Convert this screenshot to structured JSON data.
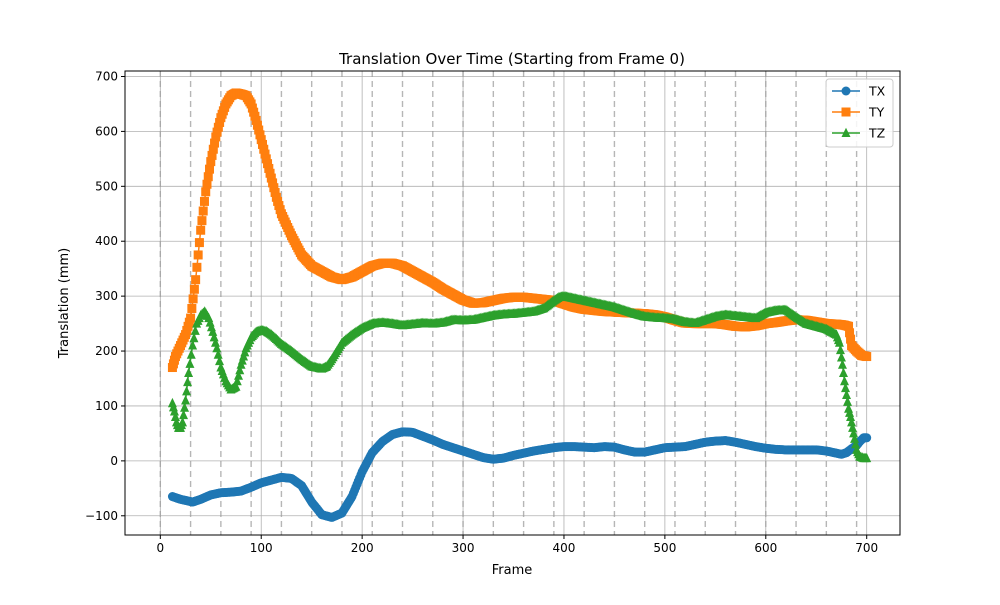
{
  "chart_data": {
    "type": "line",
    "title": "Translation Over Time (Starting from Frame 0)",
    "xlabel": "Frame",
    "ylabel": "Translation (mm)",
    "xlim": [
      -35,
      733
    ],
    "ylim": [
      -135,
      710
    ],
    "xticks": [
      0,
      100,
      200,
      300,
      400,
      500,
      600,
      700
    ],
    "yticks": [
      -100,
      0,
      100,
      200,
      300,
      400,
      500,
      600,
      700
    ],
    "ytick_labels": [
      "−100",
      "0",
      "100",
      "200",
      "300",
      "400",
      "500",
      "600",
      "700"
    ],
    "grid": true,
    "vertical_dashed_lines": [
      0,
      30,
      60,
      90,
      120,
      150,
      180,
      210,
      240,
      270,
      300,
      330,
      360,
      390,
      420,
      450,
      480,
      510,
      540,
      570,
      600,
      630,
      660,
      690
    ],
    "legend_position": "top-right",
    "series": [
      {
        "name": "TX",
        "color": "#1f77b4",
        "marker": "circle",
        "x": [
          12,
          20,
          25,
          32,
          40,
          50,
          60,
          70,
          80,
          90,
          100,
          110,
          120,
          130,
          140,
          150,
          160,
          170,
          180,
          190,
          200,
          210,
          220,
          230,
          240,
          250,
          260,
          270,
          280,
          290,
          300,
          310,
          320,
          330,
          340,
          350,
          360,
          370,
          380,
          390,
          400,
          410,
          420,
          430,
          440,
          450,
          460,
          470,
          480,
          490,
          500,
          510,
          520,
          530,
          540,
          550,
          560,
          570,
          580,
          590,
          600,
          610,
          620,
          630,
          640,
          650,
          660,
          670,
          675,
          680,
          685,
          690,
          693,
          697,
          700
        ],
        "y": [
          -65,
          -70,
          -72,
          -75,
          -70,
          -62,
          -58,
          -57,
          -55,
          -48,
          -40,
          -35,
          -30,
          -32,
          -45,
          -75,
          -98,
          -103,
          -95,
          -65,
          -20,
          15,
          35,
          48,
          53,
          52,
          45,
          38,
          30,
          24,
          18,
          12,
          6,
          3,
          5,
          10,
          14,
          18,
          21,
          24,
          26,
          26,
          25,
          24,
          26,
          25,
          20,
          16,
          16,
          20,
          24,
          25,
          26,
          30,
          34,
          36,
          37,
          34,
          30,
          26,
          23,
          21,
          20,
          20,
          20,
          20,
          18,
          14,
          12,
          15,
          22,
          28,
          35,
          42,
          42
        ]
      },
      {
        "name": "TY",
        "color": "#ff7f0e",
        "marker": "square",
        "x": [
          12,
          15,
          20,
          25,
          30,
          35,
          40,
          45,
          50,
          55,
          60,
          65,
          70,
          75,
          80,
          85,
          90,
          95,
          100,
          105,
          110,
          115,
          120,
          130,
          140,
          150,
          160,
          170,
          180,
          190,
          200,
          210,
          220,
          230,
          240,
          250,
          260,
          270,
          280,
          290,
          300,
          310,
          320,
          330,
          340,
          350,
          360,
          370,
          380,
          390,
          400,
          410,
          420,
          430,
          440,
          450,
          460,
          470,
          480,
          490,
          500,
          510,
          520,
          530,
          540,
          550,
          560,
          570,
          580,
          590,
          600,
          610,
          620,
          630,
          640,
          650,
          660,
          670,
          675,
          678,
          682,
          685,
          690,
          695,
          700
        ],
        "y": [
          170,
          190,
          210,
          230,
          260,
          330,
          420,
          490,
          545,
          590,
          625,
          650,
          665,
          670,
          668,
          665,
          650,
          620,
          585,
          550,
          515,
          480,
          450,
          410,
          375,
          355,
          345,
          335,
          330,
          335,
          345,
          355,
          360,
          360,
          355,
          345,
          335,
          325,
          313,
          303,
          293,
          287,
          288,
          292,
          296,
          298,
          298,
          296,
          294,
          292,
          286,
          280,
          276,
          274,
          272,
          271,
          270,
          269,
          268,
          266,
          262,
          256,
          251,
          250,
          250,
          250,
          248,
          245,
          244,
          246,
          250,
          252,
          255,
          257,
          256,
          253,
          250,
          249,
          248,
          247,
          245,
          210,
          200,
          192,
          190
        ]
      },
      {
        "name": "TZ",
        "color": "#2ca02c",
        "marker": "triangle",
        "x": [
          12,
          14,
          16,
          18,
          20,
          22,
          25,
          28,
          32,
          36,
          40,
          44,
          48,
          52,
          56,
          60,
          65,
          70,
          75,
          80,
          85,
          90,
          95,
          100,
          105,
          110,
          115,
          120,
          130,
          140,
          150,
          160,
          165,
          170,
          175,
          180,
          190,
          200,
          210,
          220,
          230,
          240,
          250,
          260,
          270,
          280,
          290,
          300,
          310,
          320,
          330,
          340,
          350,
          360,
          370,
          380,
          390,
          395,
          400,
          410,
          420,
          430,
          440,
          450,
          460,
          470,
          480,
          490,
          500,
          510,
          520,
          530,
          540,
          550,
          560,
          570,
          580,
          590,
          600,
          610,
          620,
          630,
          640,
          650,
          660,
          670,
          673,
          676,
          678,
          680,
          682,
          684,
          686,
          688,
          690,
          693,
          697,
          700
        ],
        "y": [
          105,
          90,
          70,
          60,
          60,
          70,
          110,
          160,
          210,
          250,
          265,
          272,
          260,
          235,
          205,
          170,
          145,
          130,
          135,
          175,
          205,
          225,
          235,
          238,
          236,
          230,
          222,
          213,
          200,
          185,
          172,
          168,
          172,
          185,
          200,
          215,
          230,
          242,
          250,
          252,
          250,
          247,
          249,
          251,
          250,
          252,
          257,
          256,
          257,
          261,
          265,
          267,
          268,
          270,
          272,
          278,
          292,
          298,
          300,
          296,
          292,
          288,
          284,
          280,
          274,
          268,
          263,
          261,
          260,
          258,
          253,
          251,
          257,
          263,
          266,
          264,
          262,
          260,
          270,
          274,
          275,
          262,
          250,
          245,
          240,
          230,
          215,
          175,
          145,
          120,
          95,
          80,
          60,
          40,
          20,
          8,
          5,
          5
        ]
      }
    ]
  }
}
